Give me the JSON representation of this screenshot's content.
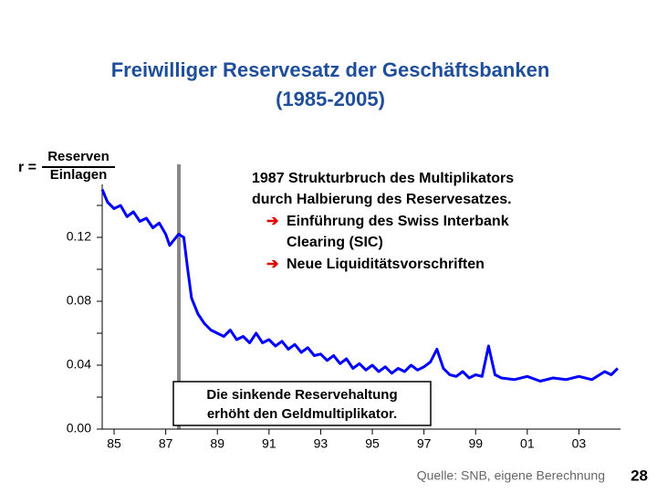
{
  "chart_data": {
    "type": "line",
    "title": [
      "Freiwilliger Reservesatz der Geschäftsbanken",
      "(1985-2005)"
    ],
    "y_label": {
      "symbol": "r =",
      "numerator": "Reserven",
      "denominator": "Einlagen"
    },
    "annotation": {
      "lines": [
        "1987 Strukturbruch des Multiplikators",
        "durch Halbierung des Reservesatzes."
      ],
      "bullets": [
        [
          "Einführung des Swiss Interbank",
          "Clearing (SIC)"
        ],
        [
          "Neue Liquiditätsvorschriften"
        ]
      ]
    },
    "box_note": [
      "Die sinkende Reservehaltung",
      "erhöht den Geldmultiplikator."
    ],
    "source": "Quelle: SNB, eigene Berechnung",
    "page_number": "28",
    "xlim": [
      1984.54,
      2004.61
    ],
    "xticks": [
      {
        "value": 1985,
        "label": "85"
      },
      {
        "value": 1987,
        "label": "87"
      },
      {
        "value": 1989,
        "label": "89"
      },
      {
        "value": 1991,
        "label": "91"
      },
      {
        "value": 1993,
        "label": "93"
      },
      {
        "value": 1995,
        "label": "95"
      },
      {
        "value": 1997,
        "label": "97"
      },
      {
        "value": 1999,
        "label": "99"
      },
      {
        "value": 2001,
        "label": "01"
      },
      {
        "value": 2003,
        "label": "03"
      }
    ],
    "ylim": [
      0,
      0.16
    ],
    "yticks": [
      {
        "value": 0,
        "label": "0.00"
      },
      {
        "value": 0.04,
        "label": "0.04"
      },
      {
        "value": 0.08,
        "label": "0.08"
      },
      0.12
    ],
    "yminorticks": [
      0.02,
      0.06,
      0.1,
      0.14
    ],
    "series": [
      {
        "name": "r",
        "color": "#0000ff",
        "x": [
          1984.54,
          1984.75,
          1985.0,
          1985.25,
          1985.5,
          1985.75,
          1986.0,
          1986.25,
          1986.5,
          1986.75,
          1987.0,
          1987.15,
          1987.3,
          1987.5,
          1987.7,
          1987.85,
          1988.0,
          1988.25,
          1988.5,
          1988.75,
          1989.0,
          1989.25,
          1989.5,
          1989.75,
          1990.0,
          1990.25,
          1990.5,
          1990.75,
          1991.0,
          1991.25,
          1991.5,
          1991.75,
          1992.0,
          1992.25,
          1992.5,
          1992.75,
          1993.0,
          1993.25,
          1993.5,
          1993.75,
          1994.0,
          1994.25,
          1994.5,
          1994.75,
          1995.0,
          1995.25,
          1995.5,
          1995.75,
          1996.0,
          1996.25,
          1996.5,
          1996.75,
          1997.0,
          1997.25,
          1997.5,
          1997.75,
          1998.0,
          1998.25,
          1998.5,
          1998.75,
          1999.0,
          1999.25,
          1999.5,
          1999.75,
          2000.0,
          2000.5,
          2001.0,
          2001.5,
          2002.0,
          2002.5,
          2003.0,
          2003.5,
          2004.0,
          2004.25,
          2004.5
        ],
        "values": [
          0.15,
          0.142,
          0.138,
          0.14,
          0.133,
          0.136,
          0.13,
          0.132,
          0.126,
          0.129,
          0.122,
          0.115,
          0.118,
          0.122,
          0.12,
          0.1,
          0.082,
          0.072,
          0.066,
          0.062,
          0.06,
          0.058,
          0.062,
          0.056,
          0.058,
          0.054,
          0.06,
          0.054,
          0.056,
          0.052,
          0.055,
          0.05,
          0.053,
          0.048,
          0.051,
          0.046,
          0.047,
          0.043,
          0.046,
          0.041,
          0.044,
          0.038,
          0.041,
          0.037,
          0.04,
          0.036,
          0.039,
          0.035,
          0.038,
          0.036,
          0.04,
          0.037,
          0.039,
          0.042,
          0.05,
          0.038,
          0.034,
          0.033,
          0.036,
          0.032,
          0.034,
          0.033,
          0.052,
          0.034,
          0.032,
          0.031,
          0.033,
          0.03,
          0.032,
          0.031,
          0.033,
          0.031,
          0.036,
          0.034,
          0.038
        ]
      }
    ]
  }
}
